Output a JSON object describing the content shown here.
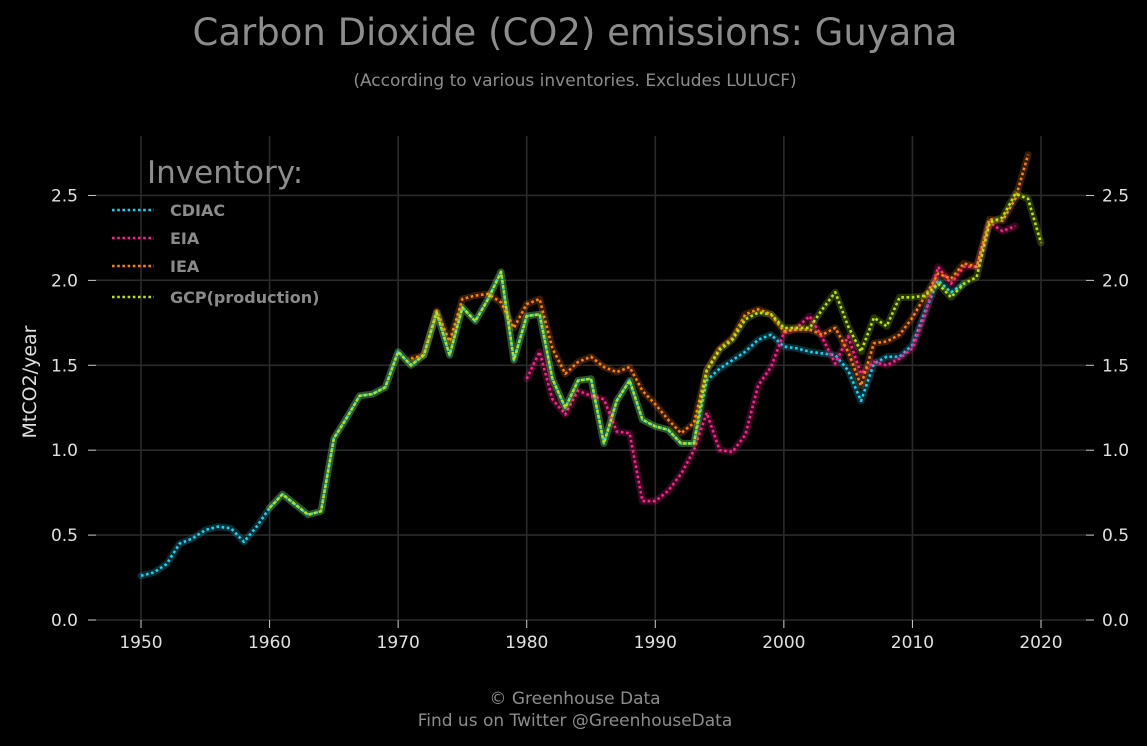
{
  "chart_data": {
    "type": "line",
    "title": "Carbon Dioxide (CO2) emissions: Guyana",
    "subtitle": "(According to various inventories. Excludes LULUCF)",
    "ylabel": "MtCO2/year",
    "xlabel": "",
    "xlim": [
      1946.5,
      2023.5
    ],
    "ylim": [
      0,
      2.85
    ],
    "x_ticks": [
      1950,
      1960,
      1970,
      1980,
      1990,
      2000,
      2010,
      2020
    ],
    "y_ticks": [
      0.0,
      0.5,
      1.0,
      1.5,
      2.0,
      2.5
    ],
    "x_tick_labels": [
      "1950",
      "1960",
      "1970",
      "1980",
      "1990",
      "2000",
      "2010",
      "2020"
    ],
    "y_tick_labels": [
      "0.0",
      "0.5",
      "1.0",
      "1.5",
      "2.0",
      "2.5"
    ],
    "grid": true,
    "legend_title": "Inventory:",
    "legend_position": "top-left",
    "series": [
      {
        "name": "CDIAC",
        "color": "#19d3f3",
        "x": [
          1950,
          1951,
          1952,
          1953,
          1954,
          1955,
          1956,
          1957,
          1958,
          1959,
          1960,
          1961,
          1962,
          1963,
          1964,
          1965,
          1966,
          1967,
          1968,
          1969,
          1970,
          1971,
          1972,
          1973,
          1974,
          1975,
          1976,
          1977,
          1978,
          1979,
          1980,
          1981,
          1982,
          1983,
          1984,
          1985,
          1986,
          1987,
          1988,
          1989,
          1990,
          1991,
          1992,
          1993,
          1994,
          1995,
          1996,
          1997,
          1998,
          1999,
          2000,
          2001,
          2002,
          2003,
          2004,
          2005,
          2006,
          2007,
          2008,
          2009,
          2010,
          2011,
          2012,
          2013,
          2014
        ],
        "y": [
          0.26,
          0.28,
          0.33,
          0.45,
          0.48,
          0.53,
          0.55,
          0.54,
          0.46,
          0.55,
          0.66,
          0.74,
          0.68,
          0.62,
          0.64,
          1.07,
          1.19,
          1.32,
          1.33,
          1.37,
          1.58,
          1.5,
          1.56,
          1.81,
          1.56,
          1.84,
          1.76,
          1.89,
          2.05,
          1.53,
          1.79,
          1.8,
          1.42,
          1.25,
          1.41,
          1.42,
          1.04,
          1.29,
          1.41,
          1.18,
          1.14,
          1.12,
          1.04,
          1.04,
          1.41,
          1.48,
          1.53,
          1.58,
          1.65,
          1.68,
          1.61,
          1.6,
          1.58,
          1.57,
          1.56,
          1.47,
          1.29,
          1.51,
          1.55,
          1.55,
          1.62,
          1.82,
          2.0,
          1.93,
          1.98
        ]
      },
      {
        "name": "EIA",
        "color": "#ff1f8e",
        "x": [
          1980,
          1981,
          1982,
          1983,
          1984,
          1985,
          1986,
          1987,
          1988,
          1989,
          1990,
          1991,
          1992,
          1993,
          1994,
          1995,
          1996,
          1997,
          1998,
          1999,
          2000,
          2001,
          2002,
          2003,
          2004,
          2005,
          2006,
          2007,
          2008,
          2009,
          2010,
          2011,
          2012,
          2013,
          2014,
          2015,
          2016,
          2017,
          2018
        ],
        "y": [
          1.42,
          1.58,
          1.3,
          1.21,
          1.35,
          1.32,
          1.3,
          1.11,
          1.1,
          0.7,
          0.7,
          0.76,
          0.86,
          1.0,
          1.22,
          1.0,
          0.99,
          1.09,
          1.38,
          1.49,
          1.69,
          1.72,
          1.79,
          1.66,
          1.51,
          1.67,
          1.45,
          1.52,
          1.5,
          1.54,
          1.6,
          1.8,
          2.08,
          1.98,
          2.08,
          2.08,
          2.34,
          2.29,
          2.32
        ]
      },
      {
        "name": "IEA",
        "color": "#ff7f0e",
        "x": [
          1971,
          1972,
          1973,
          1974,
          1975,
          1976,
          1977,
          1978,
          1979,
          1980,
          1981,
          1982,
          1983,
          1984,
          1985,
          1986,
          1987,
          1988,
          1989,
          1990,
          1991,
          1992,
          1993,
          1994,
          1995,
          1996,
          1997,
          1998,
          1999,
          2000,
          2001,
          2002,
          2003,
          2004,
          2005,
          2006,
          2007,
          2008,
          2009,
          2010,
          2011,
          2012,
          2013,
          2014,
          2015,
          2016,
          2017,
          2018,
          2019
        ],
        "y": [
          1.54,
          1.56,
          1.82,
          1.64,
          1.89,
          1.91,
          1.92,
          1.87,
          1.72,
          1.86,
          1.89,
          1.6,
          1.45,
          1.52,
          1.55,
          1.49,
          1.46,
          1.49,
          1.35,
          1.27,
          1.18,
          1.1,
          1.16,
          1.47,
          1.6,
          1.66,
          1.8,
          1.83,
          1.8,
          1.7,
          1.71,
          1.71,
          1.68,
          1.72,
          1.58,
          1.38,
          1.63,
          1.64,
          1.68,
          1.78,
          1.91,
          2.04,
          2.01,
          2.1,
          2.08,
          2.36,
          2.35,
          2.48,
          2.74
        ]
      },
      {
        "name": "GCP(production)",
        "color": "#b6e70b",
        "x": [
          1960,
          1961,
          1962,
          1963,
          1964,
          1965,
          1966,
          1967,
          1968,
          1969,
          1970,
          1971,
          1972,
          1973,
          1974,
          1975,
          1976,
          1977,
          1978,
          1979,
          1980,
          1981,
          1982,
          1983,
          1984,
          1985,
          1986,
          1987,
          1988,
          1989,
          1990,
          1991,
          1992,
          1993,
          1994,
          1995,
          1996,
          1997,
          1998,
          1999,
          2000,
          2001,
          2002,
          2003,
          2004,
          2005,
          2006,
          2007,
          2008,
          2009,
          2010,
          2011,
          2012,
          2013,
          2014,
          2015,
          2016,
          2017,
          2018,
          2019,
          2020
        ],
        "y": [
          0.66,
          0.74,
          0.68,
          0.62,
          0.64,
          1.07,
          1.19,
          1.32,
          1.33,
          1.37,
          1.58,
          1.5,
          1.56,
          1.81,
          1.56,
          1.84,
          1.76,
          1.89,
          2.05,
          1.53,
          1.79,
          1.8,
          1.42,
          1.25,
          1.41,
          1.42,
          1.04,
          1.29,
          1.41,
          1.18,
          1.14,
          1.12,
          1.04,
          1.04,
          1.47,
          1.59,
          1.65,
          1.77,
          1.81,
          1.8,
          1.72,
          1.72,
          1.72,
          1.83,
          1.93,
          1.73,
          1.58,
          1.78,
          1.73,
          1.9,
          1.9,
          1.91,
          1.98,
          1.9,
          1.98,
          2.02,
          2.34,
          2.37,
          2.51,
          2.48,
          2.22
        ]
      }
    ]
  },
  "footer": {
    "line1": "© Greenhouse Data",
    "line2": "Find us on Twitter @GreenhouseData"
  }
}
